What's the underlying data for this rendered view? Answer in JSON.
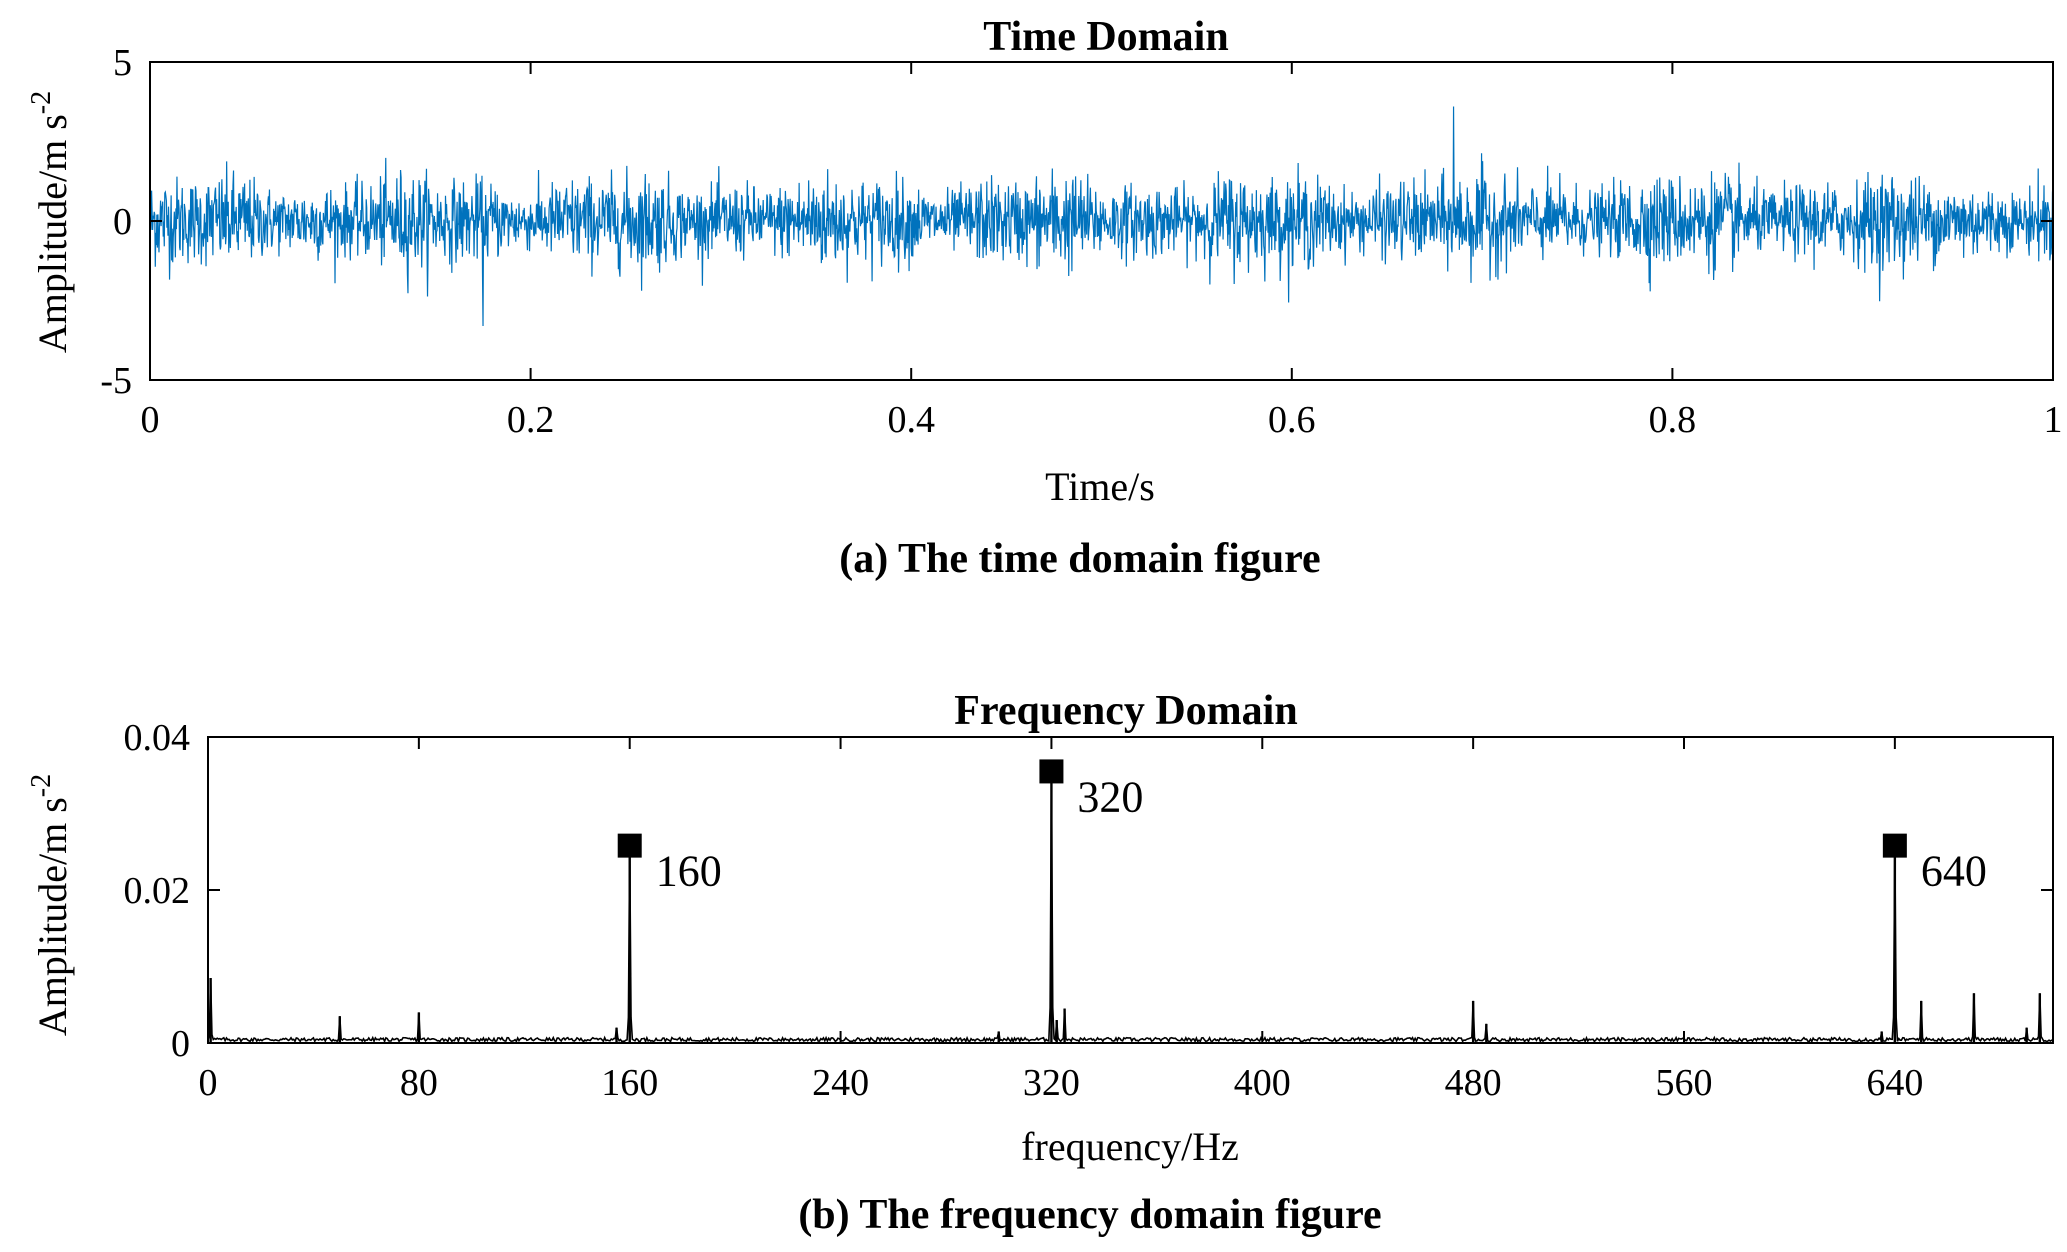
{
  "chart_data": [
    {
      "type": "line",
      "title": "Time Domain",
      "xlabel": "Time/s",
      "ylabel": "Amplitude/m s",
      "ylabel_sup": "-2",
      "caption": "(a) The time domain figure",
      "xlim": [
        0,
        1
      ],
      "ylim": [
        -5,
        5
      ],
      "xticks": [
        "0",
        "0.2",
        "0.4",
        "0.6",
        "0.8",
        "1"
      ],
      "xtick_values": [
        0,
        0.2,
        0.4,
        0.6,
        0.8,
        1
      ],
      "yticks": [
        "-5",
        "0",
        "5"
      ],
      "ytick_values": [
        -5,
        0,
        5
      ],
      "grid": false,
      "line_color": "#0072BD",
      "series": [
        {
          "description_values": "dense noise-like vibration signal centred at 0",
          "x_range": [
            0,
            1
          ],
          "y_typical_range": [
            -2,
            2
          ],
          "y_max": 3.6,
          "y_max_at": 0.685,
          "y_min": -3.4,
          "y_min_at": 0.175
        }
      ]
    },
    {
      "type": "line",
      "title": "Frequency Domain",
      "xlabel": "frequency/Hz",
      "ylabel": "Amplitude/m s",
      "ylabel_sup": "-2",
      "caption": "(b) The frequency domain figure",
      "xlim": [
        0,
        700
      ],
      "ylim": [
        0,
        0.04
      ],
      "xticks": [
        "0",
        "80",
        "160",
        "240",
        "320",
        "400",
        "480",
        "560",
        "640"
      ],
      "xtick_values": [
        0,
        80,
        160,
        240,
        320,
        400,
        480,
        560,
        640
      ],
      "yticks": [
        "0",
        "0.02",
        "0.04"
      ],
      "ytick_values": [
        0,
        0.02,
        0.04
      ],
      "grid": false,
      "line_color": "#000000",
      "peaks": [
        {
          "x": 160,
          "y": 0.0258,
          "label": "160"
        },
        {
          "x": 320,
          "y": 0.0355,
          "label": "320"
        },
        {
          "x": 640,
          "y": 0.0258,
          "label": "640"
        }
      ],
      "minor_peaks": [
        {
          "x": 1,
          "y": 0.0085
        },
        {
          "x": 50,
          "y": 0.0035
        },
        {
          "x": 80,
          "y": 0.004
        },
        {
          "x": 155,
          "y": 0.002
        },
        {
          "x": 300,
          "y": 0.0015
        },
        {
          "x": 322,
          "y": 0.003
        },
        {
          "x": 325,
          "y": 0.0045
        },
        {
          "x": 480,
          "y": 0.0055
        },
        {
          "x": 485,
          "y": 0.0025
        },
        {
          "x": 635,
          "y": 0.0015
        },
        {
          "x": 650,
          "y": 0.0055
        },
        {
          "x": 670,
          "y": 0.0065
        },
        {
          "x": 690,
          "y": 0.002
        },
        {
          "x": 695,
          "y": 0.0065
        }
      ]
    }
  ]
}
